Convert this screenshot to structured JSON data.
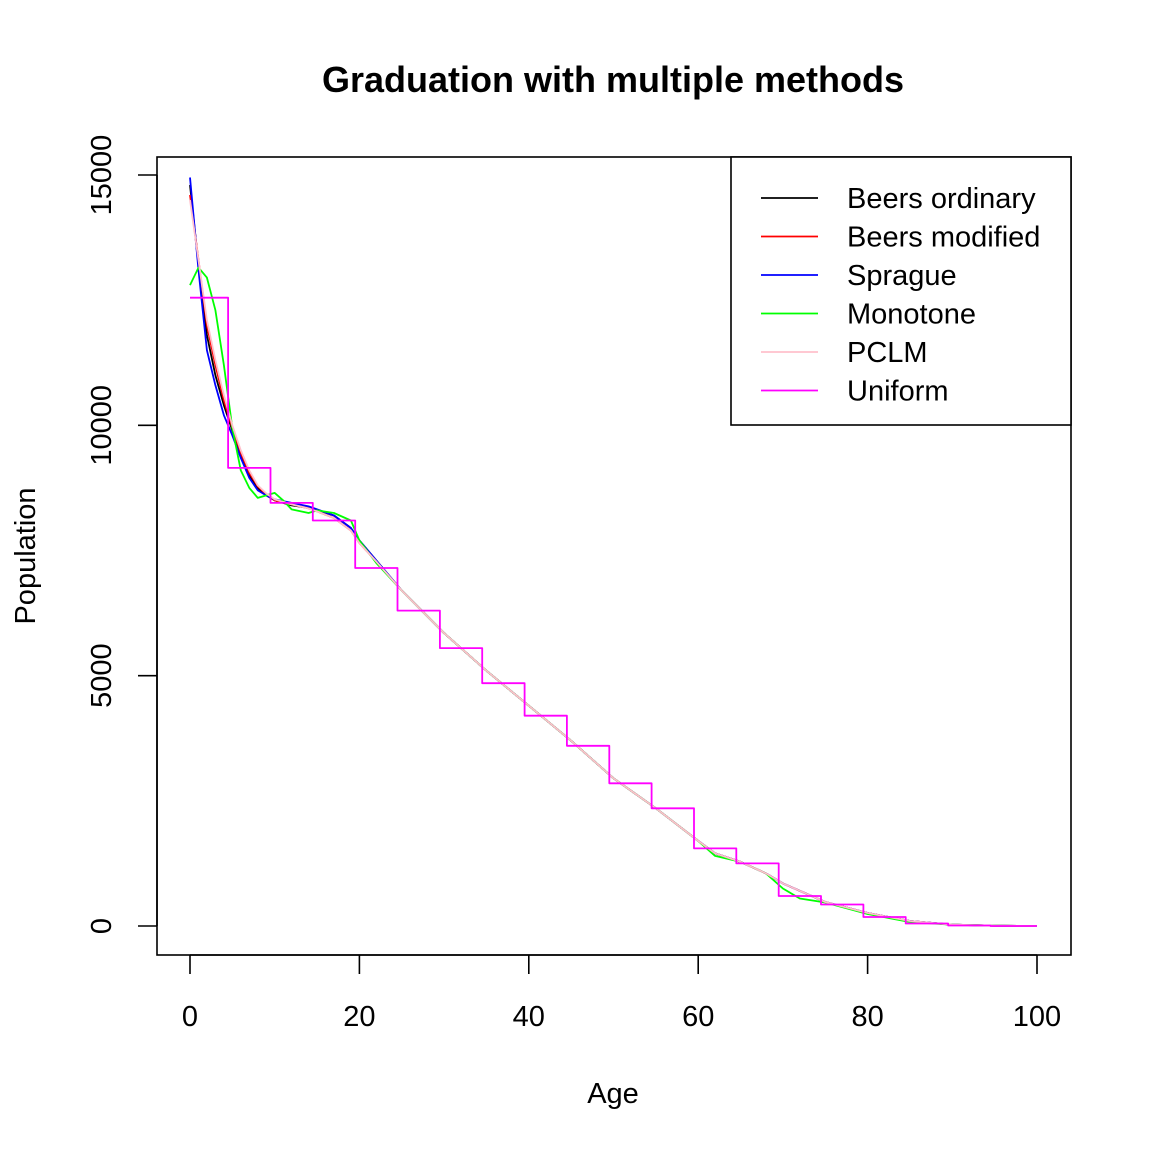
{
  "chart_data": {
    "type": "line",
    "title": "Graduation with multiple methods",
    "xlabel": "Age",
    "ylabel": "Population",
    "xlim": [
      0,
      100
    ],
    "ylim": [
      0,
      15000
    ],
    "x_ticks": [
      0,
      20,
      40,
      60,
      80,
      100
    ],
    "y_ticks": [
      0,
      5000,
      10000,
      15000
    ],
    "legend_position": "top-right",
    "grid": false,
    "series": [
      {
        "name": "Beers ordinary",
        "color": "#000000",
        "x": [
          0,
          1,
          2,
          3,
          4,
          5,
          6,
          7,
          8,
          9,
          10,
          12,
          14,
          15,
          17,
          19,
          20,
          22,
          25,
          30,
          35,
          40,
          45,
          50,
          55,
          60,
          62,
          65,
          68,
          70,
          75,
          80,
          85,
          90,
          95,
          100
        ],
        "y": [
          14800,
          13200,
          11800,
          11000,
          10400,
          9900,
          9400,
          9000,
          8750,
          8600,
          8500,
          8400,
          8350,
          8300,
          8200,
          7950,
          7700,
          7300,
          6700,
          5850,
          5100,
          4400,
          3700,
          2950,
          2350,
          1700,
          1450,
          1280,
          1050,
          850,
          480,
          260,
          100,
          25,
          5,
          0
        ]
      },
      {
        "name": "Beers modified",
        "color": "#ff0000",
        "x": [
          0,
          1,
          2,
          3,
          4,
          5,
          6,
          7,
          8,
          9,
          10,
          12,
          14,
          15,
          17,
          19,
          20,
          22,
          25,
          30,
          35,
          40,
          45,
          50,
          55,
          60,
          62,
          65,
          68,
          70,
          75,
          80,
          85,
          90,
          95,
          100
        ],
        "y": [
          14600,
          13300,
          12000,
          11200,
          10500,
          9950,
          9450,
          9050,
          8780,
          8620,
          8500,
          8420,
          8340,
          8280,
          8150,
          7900,
          7650,
          7280,
          6700,
          5850,
          5100,
          4400,
          3700,
          2950,
          2350,
          1700,
          1450,
          1280,
          1050,
          850,
          480,
          260,
          100,
          25,
          5,
          0
        ]
      },
      {
        "name": "Sprague",
        "color": "#0000ff",
        "x": [
          0,
          1,
          2,
          3,
          4,
          5,
          6,
          7,
          8,
          9,
          10,
          12,
          14,
          15,
          17,
          19,
          20,
          22,
          25,
          30,
          35,
          40,
          45,
          50,
          55,
          60,
          62,
          65,
          68,
          70,
          75,
          80,
          85,
          90,
          95,
          100
        ],
        "y": [
          14950,
          13100,
          11500,
          10800,
          10200,
          9800,
          9350,
          8950,
          8700,
          8600,
          8520,
          8450,
          8380,
          8320,
          8200,
          7950,
          7700,
          7300,
          6700,
          5850,
          5100,
          4400,
          3700,
          2950,
          2350,
          1700,
          1450,
          1280,
          1050,
          850,
          480,
          260,
          100,
          25,
          5,
          0
        ]
      },
      {
        "name": "Monotone",
        "color": "#00ff00",
        "x": [
          0,
          1,
          2,
          3,
          4,
          5,
          6,
          7,
          8,
          9,
          10,
          11,
          12,
          14,
          15,
          17,
          19,
          20,
          22,
          25,
          30,
          35,
          40,
          45,
          50,
          55,
          60,
          62,
          65,
          68,
          70,
          72,
          75,
          80,
          85,
          90,
          95,
          100
        ],
        "y": [
          12800,
          13150,
          12950,
          12300,
          11200,
          9950,
          9100,
          8750,
          8550,
          8600,
          8650,
          8500,
          8320,
          8250,
          8300,
          8250,
          8100,
          7700,
          7250,
          6700,
          5850,
          5100,
          4400,
          3700,
          2950,
          2350,
          1700,
          1400,
          1280,
          1050,
          750,
          550,
          470,
          240,
          80,
          25,
          5,
          0
        ]
      },
      {
        "name": "PCLM",
        "color": "#ffc0cb",
        "x": [
          0,
          1,
          2,
          3,
          4,
          5,
          6,
          7,
          8,
          9,
          10,
          12,
          14,
          15,
          17,
          19,
          20,
          22,
          25,
          30,
          35,
          40,
          45,
          50,
          55,
          60,
          62,
          65,
          68,
          70,
          75,
          80,
          85,
          90,
          95,
          100
        ],
        "y": [
          14500,
          13300,
          12100,
          11300,
          10600,
          10000,
          9500,
          9100,
          8800,
          8640,
          8520,
          8420,
          8340,
          8280,
          8150,
          7900,
          7650,
          7280,
          6700,
          5850,
          5100,
          4400,
          3700,
          2950,
          2350,
          1700,
          1450,
          1280,
          1050,
          850,
          480,
          260,
          100,
          25,
          5,
          0
        ]
      },
      {
        "name": "Uniform",
        "color": "#ff00ff",
        "x": [
          0,
          4.5,
          4.5,
          9.5,
          9.5,
          14.5,
          14.5,
          19.5,
          19.5,
          24.5,
          24.5,
          29.5,
          29.5,
          34.5,
          34.5,
          39.5,
          39.5,
          44.5,
          44.5,
          49.5,
          49.5,
          54.5,
          54.5,
          59.5,
          59.5,
          64.5,
          64.5,
          69.5,
          69.5,
          74.5,
          74.5,
          79.5,
          79.5,
          84.5,
          84.5,
          89.5,
          89.5,
          94.5,
          94.5,
          100
        ],
        "y": [
          12550,
          12550,
          9150,
          9150,
          8450,
          8450,
          8100,
          8100,
          7150,
          7150,
          6300,
          6300,
          5550,
          5550,
          4850,
          4850,
          4200,
          4200,
          3600,
          3600,
          2850,
          2850,
          2350,
          2350,
          1550,
          1550,
          1250,
          1250,
          600,
          600,
          430,
          430,
          180,
          180,
          50,
          50,
          10,
          10,
          0,
          0
        ]
      }
    ]
  }
}
